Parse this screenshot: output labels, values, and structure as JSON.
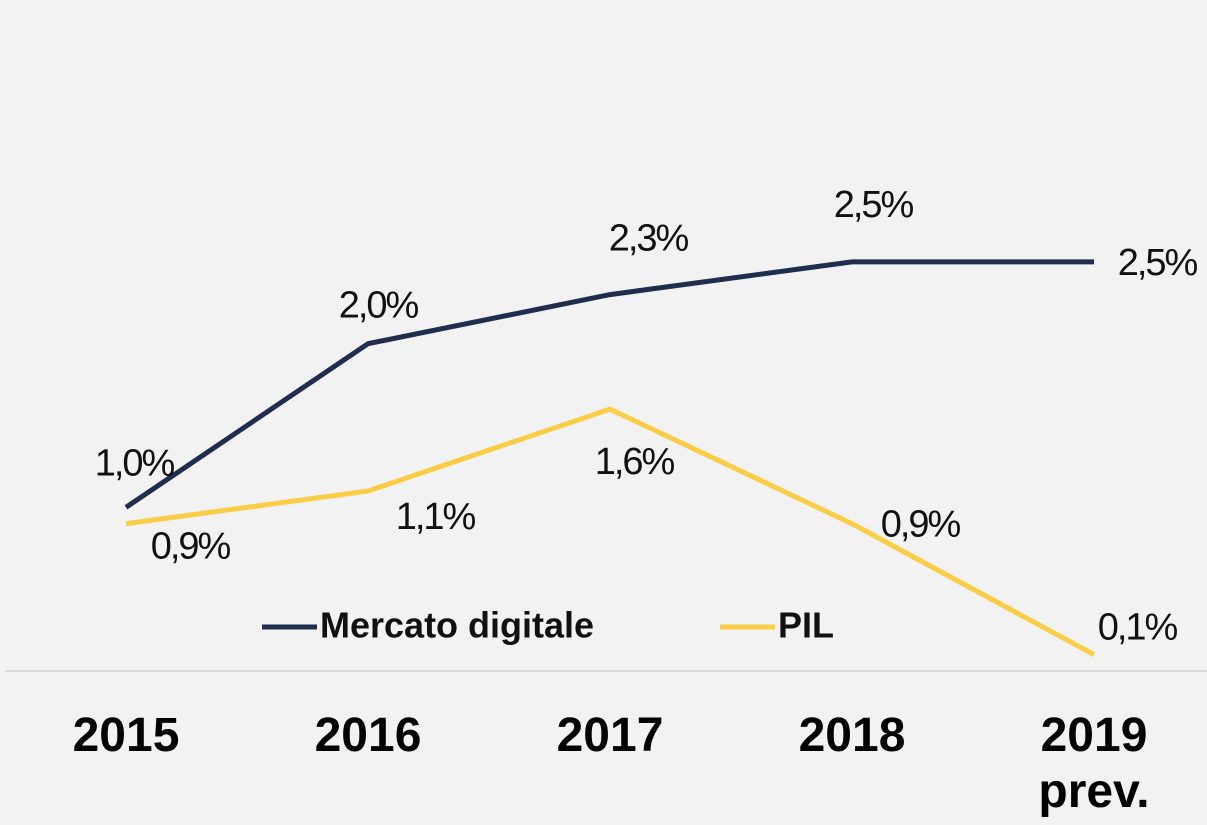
{
  "chart_data": {
    "type": "line",
    "categories": [
      "2015",
      "2016",
      "2017",
      "2018",
      "2019 prev."
    ],
    "series": [
      {
        "name": "Mercato digitale",
        "color": "#1f2d4e",
        "values": [
          1.0,
          2.0,
          2.3,
          2.5,
          2.5
        ],
        "value_labels": [
          "1,0%",
          "2,0%",
          "2,3%",
          "2,5%",
          "2,5%"
        ]
      },
      {
        "name": "PIL",
        "color": "#f9cd46",
        "values": [
          0.9,
          1.1,
          1.6,
          0.9,
          0.1
        ],
        "value_labels": [
          "0,9%",
          "1,1%",
          "1,6%",
          "0,9%",
          "0,1%"
        ]
      }
    ],
    "ylim": [
      0,
      4.1
    ]
  }
}
